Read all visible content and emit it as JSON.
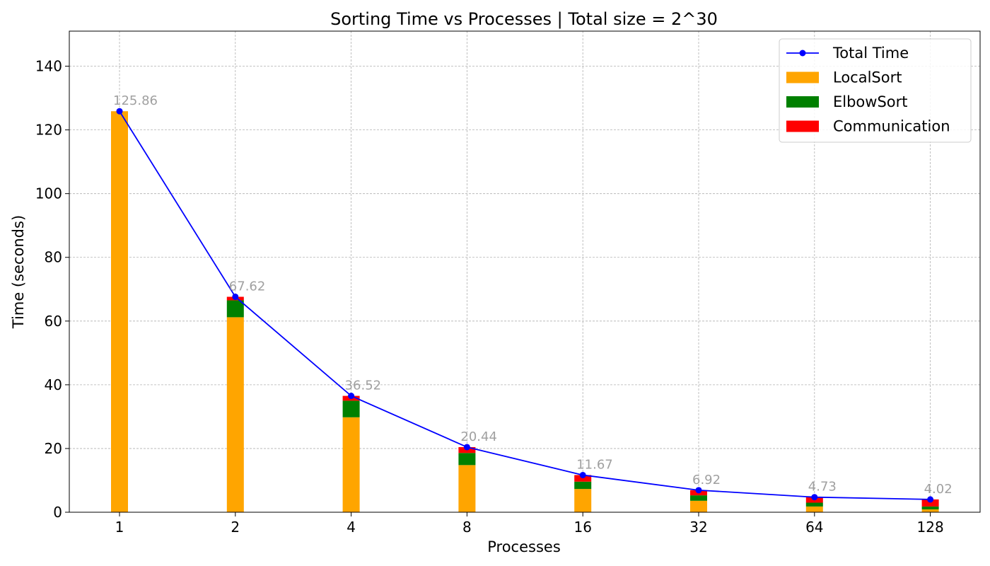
{
  "chart_data": {
    "type": "bar",
    "title": "Sorting Time vs Processes | Total size = 2^30",
    "xlabel": "Processes",
    "ylabel": "Time (seconds)",
    "categories": [
      "1",
      "2",
      "4",
      "8",
      "16",
      "32",
      "64",
      "128"
    ],
    "ylim": [
      0,
      151
    ],
    "yticks": [
      0,
      20,
      40,
      60,
      80,
      100,
      120,
      140
    ],
    "grid": true,
    "legend_position": "top-right",
    "stacked": true,
    "series": [
      {
        "name": "LocalSort",
        "kind": "bar",
        "color": "#ffa500",
        "values": [
          125.86,
          61.2,
          29.8,
          14.8,
          7.3,
          3.6,
          1.8,
          0.9
        ]
      },
      {
        "name": "ElbowSort",
        "kind": "bar",
        "color": "#008000",
        "values": [
          0.0,
          5.3,
          5.2,
          3.8,
          2.3,
          1.7,
          1.2,
          0.9
        ]
      },
      {
        "name": "Communication",
        "kind": "bar",
        "color": "#ff0000",
        "values": [
          0.0,
          1.12,
          1.52,
          1.84,
          2.07,
          1.62,
          1.73,
          2.22
        ]
      },
      {
        "name": "Total Time",
        "kind": "line",
        "color": "#0000ff",
        "values": [
          125.86,
          67.62,
          36.52,
          20.44,
          11.67,
          6.92,
          4.73,
          4.02
        ]
      }
    ],
    "data_labels": [
      "125.86",
      "67.62",
      "36.52",
      "20.44",
      "11.67",
      "6.92",
      "4.73",
      "4.02"
    ]
  }
}
